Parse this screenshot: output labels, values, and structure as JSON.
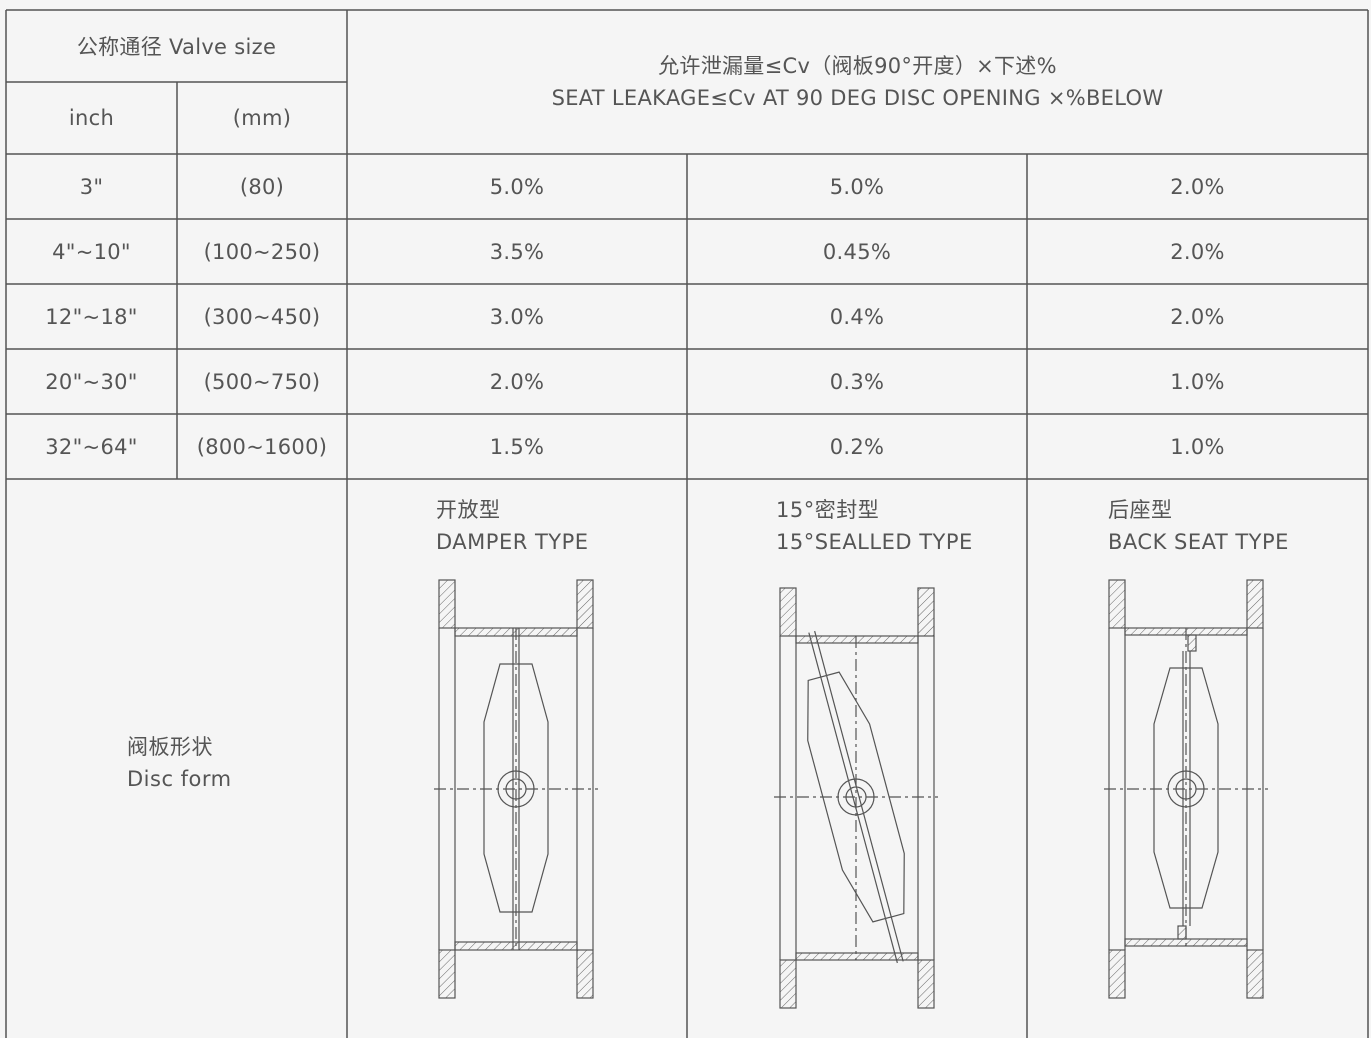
{
  "header": {
    "valve_size": "公称通径 Valve size",
    "inch": "inch",
    "mm": "(mm)",
    "leakage_cn": "允许泄漏量≤Cv（阀板90°开度）×下述%",
    "leakage_en": "SEAT LEAKAGE≤Cv AT 90 DEG DISC OPENING ×%BELOW"
  },
  "rows": [
    {
      "inch": "3\"",
      "mm": "(80)",
      "damper": "5.0%",
      "sealed": "5.0%",
      "backseat": "2.0%"
    },
    {
      "inch": "4\"~10\"",
      "mm": "(100~250)",
      "damper": "3.5%",
      "sealed": "0.45%",
      "backseat": "2.0%"
    },
    {
      "inch": "12\"~18\"",
      "mm": "(300~450)",
      "damper": "3.0%",
      "sealed": "0.4%",
      "backseat": "2.0%"
    },
    {
      "inch": "20\"~30\"",
      "mm": "(500~750)",
      "damper": "2.0%",
      "sealed": "0.3%",
      "backseat": "1.0%"
    },
    {
      "inch": "32\"~64\"",
      "mm": "(800~1600)",
      "damper": "1.5%",
      "sealed": "0.2%",
      "backseat": "1.0%"
    }
  ],
  "disc_form": {
    "label_cn": "阀板形状",
    "label_en": "Disc form",
    "types": [
      {
        "cn": "开放型",
        "en": "DAMPER TYPE"
      },
      {
        "cn": "15°密封型",
        "en": "15°SEALLED TYPE"
      },
      {
        "cn": "后座型",
        "en": "BACK SEAT TYPE"
      }
    ]
  },
  "colors": {
    "line": "#555555",
    "background": "#f5f5f5",
    "text": "#555555"
  }
}
